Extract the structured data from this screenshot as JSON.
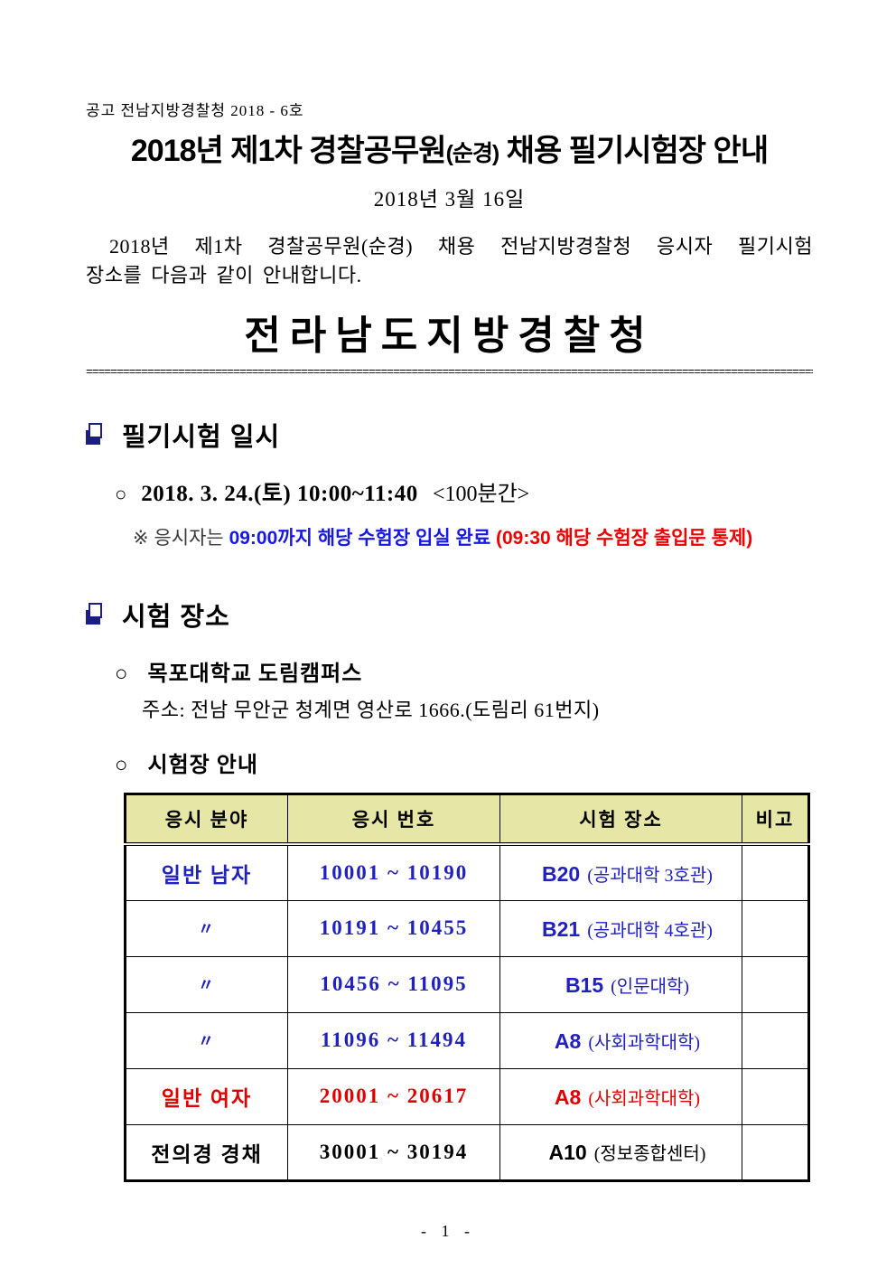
{
  "page": {
    "notice_no": "공고 전남지방경찰청 2018 - 6호",
    "title_pre": "2018년 제1차 경찰공무원",
    "title_paren": "(순경)",
    "title_post": " 채용 필기시험장 안내",
    "date": "2018년 3월 16일",
    "intro_line1": "2018년 제1차 경찰공무원(순경) 채용 전남지방경찰청 응시자 필기시험",
    "intro_line2": "장소를 다음과 같이 안내합니다.",
    "agency_name": "전라남도지방경찰청",
    "divider": "========================================================================================================================================",
    "footer_page_number": "- 1 -"
  },
  "glyphs": {
    "circle_bullet": "○",
    "reference_mark": "※",
    "ditto_mark": "〃"
  },
  "colors": {
    "blue": "#2121bd",
    "red": "#e00000",
    "note_blue": "#1717e6",
    "note_red": "#ef0000",
    "navy": "#1c1c86",
    "header_bg": "#e6e6a6"
  },
  "exam_datetime": {
    "heading": "필기시험 일시",
    "schedule_bold": "2018. 3. 24.(토) 10:00~11:40",
    "schedule_tail": "<100분간>",
    "note_prefix": "응시자는 ",
    "note_blue_text": "09:00까지 해당 수험장 입실 완료 ",
    "note_red_text": "(09:30 해당 수험장 출입문 통제)"
  },
  "exam_place": {
    "heading": "시험 장소",
    "campus": "목포대학교 도림캠퍼스",
    "address": "주소: 전남 무안군 청계면 영산로 1666.(도림리 61번지)",
    "table_title": "시험장 안내"
  },
  "table": {
    "headers": [
      "응시 분야",
      "응시 번호",
      "시험 장소",
      "비고"
    ],
    "rows": [
      {
        "category": "일반 남자",
        "numbers": "10001 ~ 10190",
        "code": "B20",
        "building": "(공과대학 3호관)",
        "note": "",
        "color": "blue"
      },
      {
        "category": "〃",
        "numbers": "10191 ~ 10455",
        "code": "B21",
        "building": "(공과대학 4호관)",
        "note": "",
        "color": "blue"
      },
      {
        "category": "〃",
        "numbers": "10456 ~ 11095",
        "code": "B15",
        "building": "(인문대학)",
        "note": "",
        "color": "blue"
      },
      {
        "category": "〃",
        "numbers": "11096 ~ 11494",
        "code": "A8",
        "building": "(사회과학대학)",
        "note": "",
        "color": "blue"
      },
      {
        "category": "일반 여자",
        "numbers": "20001 ~ 20617",
        "code": "A8",
        "building": "(사회과학대학)",
        "note": "",
        "color": "red"
      },
      {
        "category": "전의경 경채",
        "numbers": "30001 ~ 30194",
        "code": "A10",
        "building": "(정보종합센터)",
        "note": "",
        "color": "black"
      }
    ]
  }
}
